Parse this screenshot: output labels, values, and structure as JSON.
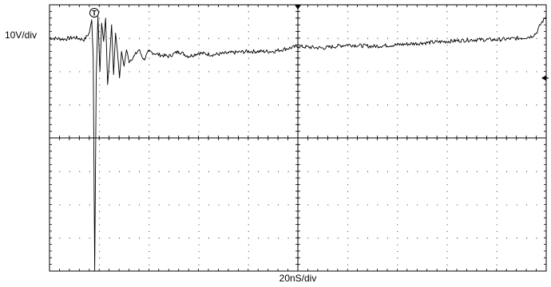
{
  "chart_data": {
    "type": "line",
    "title": "",
    "vertical_scale": "10V/div",
    "horizontal_scale": "20nS/div",
    "divisions": {
      "x": 10,
      "y": 8
    },
    "xlim": [
      0,
      200
    ],
    "ylim": [
      -40,
      40
    ],
    "grid": true,
    "trigger_marker": "T",
    "trigger_time": 18,
    "x_unit": "ns",
    "y_unit": "V",
    "series": [
      {
        "x": [
          0,
          6,
          10,
          14,
          16,
          17,
          17.6,
          18.2,
          18.8,
          19.5,
          20.3,
          21,
          21.8,
          22.6,
          23.4,
          24.2,
          25,
          25.8,
          26.6,
          27.4,
          28.2,
          29,
          30,
          31,
          32,
          34,
          36,
          38,
          40,
          44,
          48,
          52,
          56,
          60,
          66,
          72,
          80,
          90,
          100,
          110,
          120,
          130,
          140,
          150,
          160,
          170,
          180,
          190,
          194,
          196,
          198,
          200
        ],
        "y": [
          30.0,
          29.7,
          30.2,
          29.5,
          31.5,
          35.5,
          24.0,
          -40.0,
          18.0,
          36.5,
          20.0,
          34.5,
          29.0,
          36.0,
          16.0,
          24.0,
          34.0,
          19.0,
          31.5,
          25.5,
          18.0,
          26.0,
          21.5,
          26.5,
          23.0,
          24.5,
          26.5,
          23.5,
          26.0,
          25.0,
          24.5,
          26.0,
          24.5,
          25.5,
          25.0,
          25.5,
          26.0,
          26.0,
          27.5,
          27.0,
          28.0,
          27.5,
          28.0,
          28.5,
          29.0,
          29.5,
          29.5,
          30.0,
          30.5,
          31.5,
          34.5,
          36.5
        ]
      }
    ]
  }
}
